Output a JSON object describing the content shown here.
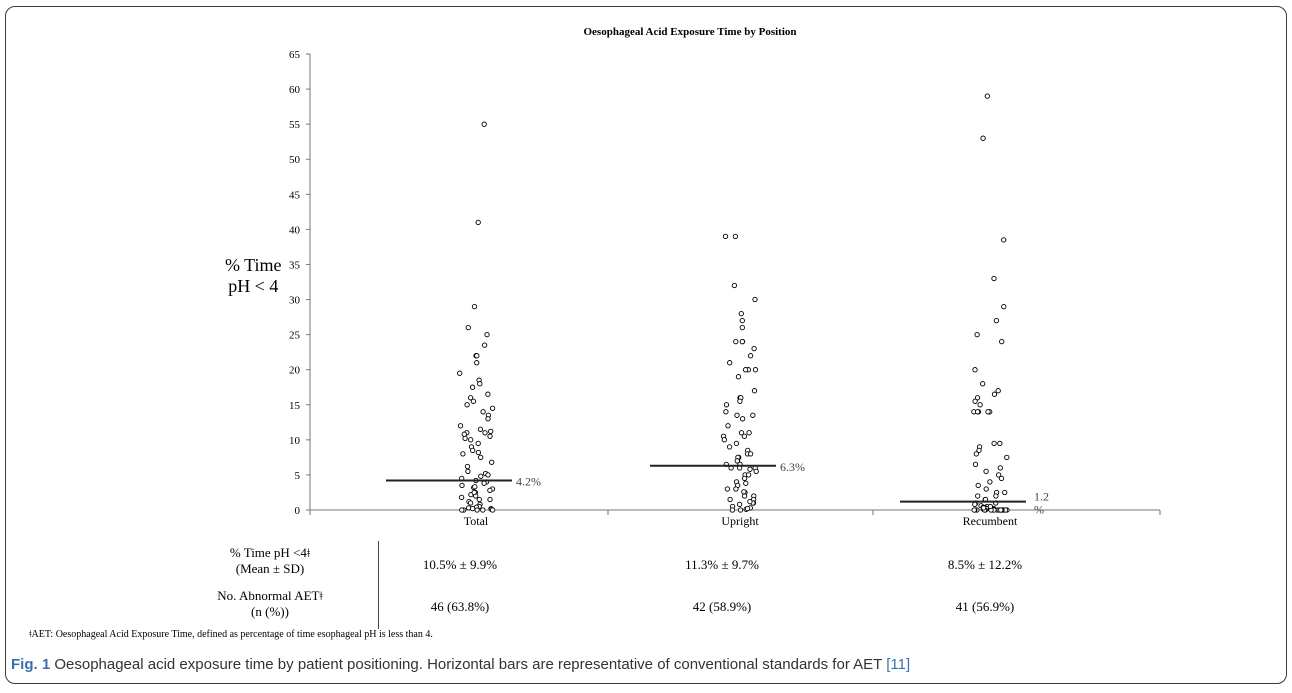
{
  "chart_data": {
    "type": "scatter",
    "title": "Oesophageal Acid Exposure Time by Position",
    "ylabel_lines": [
      "% Time",
      "pH < 4"
    ],
    "ylim": [
      0,
      65
    ],
    "yticks": [
      0,
      5,
      10,
      15,
      20,
      25,
      30,
      35,
      40,
      45,
      50,
      55,
      60,
      65
    ],
    "categories": [
      "Total",
      "Upright",
      "Recumbent"
    ],
    "grid": false,
    "reference_lines": [
      {
        "category": "Total",
        "value": 4.2,
        "label": "4.2%"
      },
      {
        "category": "Upright",
        "value": 6.3,
        "label": "6.3%"
      },
      {
        "category": "Recumbent",
        "value": 1.2,
        "label_lines": [
          "1.2",
          "%"
        ]
      }
    ],
    "series": [
      {
        "category": "Total",
        "values": [
          55,
          41,
          29,
          26,
          25,
          23.5,
          22,
          22,
          21,
          19.5,
          18.5,
          18,
          17.5,
          16.5,
          16,
          15.5,
          15,
          14.5,
          14,
          13.5,
          13,
          12,
          11.5,
          11.2,
          11,
          11,
          10.8,
          10.5,
          10.2,
          10,
          9.5,
          9,
          8.5,
          8.2,
          8,
          7.5,
          6.8,
          6.2,
          5.5,
          5.2,
          5,
          4.8,
          4.5,
          4.2,
          4,
          3.8,
          3.5,
          3.2,
          3,
          2.8,
          2.5,
          2.2,
          2,
          1.8,
          1.5,
          1.2,
          1,
          0.8,
          0.5,
          0.4,
          0.3,
          0.2,
          0.1,
          0,
          0,
          0,
          0,
          0,
          0.2,
          1.5,
          2.5,
          3.3
        ]
      },
      {
        "category": "Upright",
        "values": [
          39,
          39,
          32,
          30,
          28,
          27,
          26,
          24,
          24,
          24,
          23,
          22,
          21,
          20,
          20,
          20,
          19,
          17,
          16,
          16,
          15.5,
          15,
          14,
          13.5,
          13.5,
          13,
          12,
          11,
          11,
          10.5,
          10.5,
          10,
          9.5,
          9,
          8.5,
          8,
          8,
          7.5,
          7.5,
          7,
          7,
          6.5,
          6.5,
          6,
          6,
          6,
          5.5,
          5,
          5,
          4.5,
          4,
          3.5,
          3,
          3,
          2.5,
          2,
          2,
          1.5,
          1.5,
          1,
          1,
          0.8,
          0.5,
          0.3,
          0.1,
          0,
          0,
          0.2,
          1.2,
          2.6,
          3.8,
          5.8
        ]
      },
      {
        "category": "Recumbent",
        "values": [
          59,
          53,
          38.5,
          33,
          29,
          27,
          25,
          24,
          20,
          18,
          17,
          16.5,
          16,
          15.5,
          15,
          14,
          14,
          14,
          14,
          14,
          9.5,
          9.5,
          9,
          8.5,
          8,
          7.5,
          6.5,
          6,
          5.5,
          5,
          4.5,
          4,
          3.5,
          3,
          2.5,
          2.5,
          2,
          2,
          1.5,
          1.5,
          1,
          1,
          0.8,
          0.6,
          0.5,
          0.4,
          0.3,
          0.2,
          0.2,
          0.1,
          0.1,
          0.1,
          0,
          0,
          0,
          0,
          0,
          0,
          0,
          0,
          0,
          0,
          0,
          0,
          0,
          0,
          0,
          0,
          0,
          0,
          0.3,
          0.5
        ]
      }
    ]
  },
  "stats_table": {
    "row1_label": [
      "% Time pH <4ǂ",
      "(Mean ± SD)"
    ],
    "row1_values": [
      "10.5% ± 9.9%",
      "11.3% ± 9.7%",
      "8.5% ± 12.2%"
    ],
    "row2_label": [
      "No. Abnormal AETǂ",
      "(n (%))"
    ],
    "row2_values": [
      "46 (63.8%)",
      "42 (58.9%)",
      "41 (56.9%)"
    ]
  },
  "footnote": "ǂAET: Oesophageal Acid Exposure Time, defined as percentage of time esophageal pH  is less than 4.",
  "caption": {
    "fig_label": "Fig. 1",
    "text": " Oesophageal acid exposure time by patient positioning. Horizontal bars are representative of conventional standards for AET ",
    "ref": "[11]"
  },
  "colors": {
    "marker_stroke": "#000000",
    "axis": "#777777",
    "caption_accent": "#3a6fb0"
  }
}
